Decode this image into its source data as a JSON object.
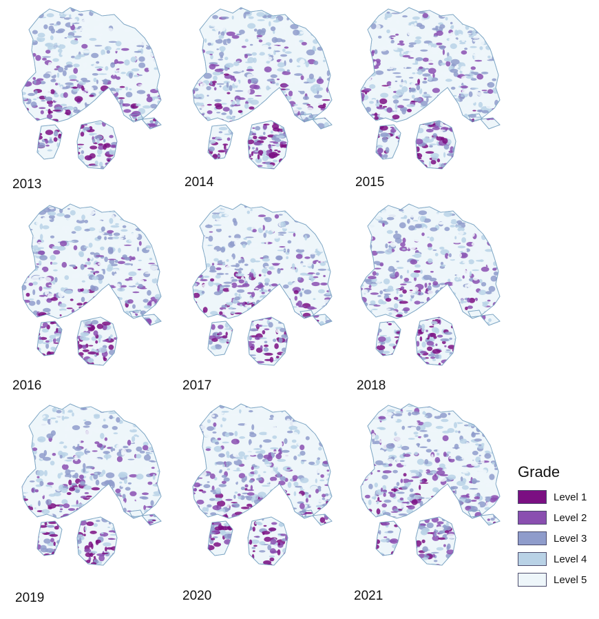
{
  "panels": [
    {
      "year": "2013",
      "seed": 11
    },
    {
      "year": "2014",
      "seed": 23
    },
    {
      "year": "2015",
      "seed": 37
    },
    {
      "year": "2016",
      "seed": 41
    },
    {
      "year": "2017",
      "seed": 53
    },
    {
      "year": "2018",
      "seed": 67
    },
    {
      "year": "2019",
      "seed": 71
    },
    {
      "year": "2020",
      "seed": 83
    },
    {
      "year": "2021",
      "seed": 97
    }
  ],
  "legend": {
    "title": "Grade",
    "items": [
      {
        "label": "Level 1",
        "color": "#7b0f82"
      },
      {
        "label": "Level 2",
        "color": "#8a4fb0"
      },
      {
        "label": "Level 3",
        "color": "#8f9ccb"
      },
      {
        "label": "Level 4",
        "color": "#b9d2e6"
      },
      {
        "label": "Level 5",
        "color": "#eef6fa"
      }
    ]
  }
}
